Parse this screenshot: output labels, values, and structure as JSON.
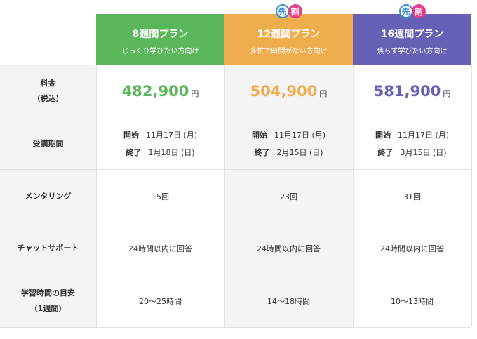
{
  "colors": {
    "plan8": "#5bb75b",
    "plan12": "#f0ad4e",
    "plan16": "#6661b7",
    "badge_saki": "#3a8ed0",
    "badge_wari": "#e23d8a"
  },
  "badges": {
    "saki": "先",
    "wari": "割"
  },
  "plans": [
    {
      "title": "8週間プラン",
      "subtitle": "じっくり学びたい方向け",
      "has_badge": false
    },
    {
      "title": "12週間プラン",
      "subtitle": "多忙で時間がない方向け",
      "has_badge": true
    },
    {
      "title": "16週間プラン",
      "subtitle": "焦らず学びたい方向け",
      "has_badge": true
    }
  ],
  "rows": {
    "price": {
      "label_line1": "料金",
      "label_line2": "（税込）",
      "values": [
        "482,900",
        "504,900",
        "581,900"
      ],
      "unit": "円"
    },
    "period": {
      "label": "受講期間",
      "start_label": "開始",
      "end_label": "終了",
      "starts": [
        "11月17日 (月)",
        "11月17日 (月)",
        "11月17日 (月)"
      ],
      "ends": [
        "1月18日 (日)",
        "2月15日 (日)",
        "3月15日 (日)"
      ]
    },
    "mentoring": {
      "label": "メンタリング",
      "values": [
        "15回",
        "23回",
        "31回"
      ]
    },
    "chat": {
      "label": "チャットサポート",
      "values": [
        "24時間以内に回答",
        "24時間以内に回答",
        "24時間以内に回答"
      ]
    },
    "study": {
      "label_line1": "学習時間の目安",
      "label_line2": "（1週間）",
      "values": [
        "20〜25時間",
        "14〜18時間",
        "10〜13時間"
      ]
    }
  }
}
